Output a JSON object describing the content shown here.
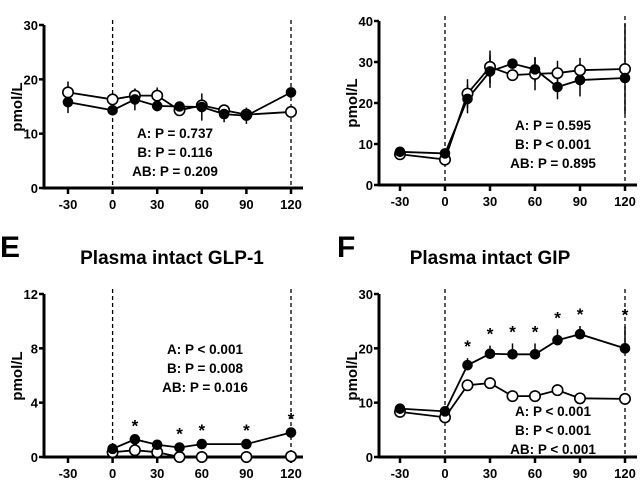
{
  "chart_data": [
    {
      "id": "top-left",
      "type": "line",
      "panel_letter": "",
      "title": "",
      "xlabel": "",
      "ylabel": "pmol/L",
      "ylim": [
        0,
        30
      ],
      "xlim": [
        -30,
        120
      ],
      "yticks": [
        0,
        10,
        20,
        30
      ],
      "xticks": [
        -30,
        0,
        30,
        60,
        90,
        120
      ],
      "ytick_labels": [
        "0",
        "10",
        "20",
        "30"
      ],
      "xtick_labels": [
        "-30",
        "0",
        "30",
        "60",
        "90",
        "120"
      ],
      "vlines": [
        0,
        120
      ],
      "stats": [
        "A: P = 0.737",
        "B: P = 0.116",
        "AB: P = 0.209"
      ],
      "stats_position": "bottom-center",
      "series": [
        {
          "name": "open",
          "marker": "open-circle",
          "x": [
            -30,
            0,
            15,
            30,
            45,
            60,
            75,
            90,
            120
          ],
          "values": [
            17.6,
            16.3,
            17.0,
            17.0,
            14.3,
            15.2,
            14.3,
            13.5,
            14.0
          ],
          "err": [
            2.0,
            0,
            1.3,
            1.5,
            0.8,
            0.8,
            1.0,
            0.5,
            0
          ],
          "stars": []
        },
        {
          "name": "filled",
          "marker": "filled-circle",
          "x": [
            -30,
            0,
            15,
            30,
            45,
            60,
            75,
            90,
            120
          ],
          "values": [
            15.8,
            14.3,
            16.3,
            15.1,
            15.0,
            14.9,
            13.6,
            13.3,
            17.6
          ],
          "err": [
            2.0,
            0,
            2.0,
            1.0,
            0.8,
            2.5,
            1.5,
            1.5,
            0
          ],
          "stars": []
        }
      ]
    },
    {
      "id": "top-right",
      "type": "line",
      "panel_letter": "",
      "title": "",
      "xlabel": "",
      "ylabel": "pmol/L",
      "ylim": [
        0,
        40
      ],
      "xlim": [
        -30,
        120
      ],
      "yticks": [
        0,
        10,
        20,
        30,
        40
      ],
      "xticks": [
        -30,
        0,
        30,
        60,
        90,
        120
      ],
      "ytick_labels": [
        "0",
        "10",
        "20",
        "30",
        "40"
      ],
      "xtick_labels": [
        "-30",
        "0",
        "30",
        "60",
        "90",
        "120"
      ],
      "vlines": [
        0,
        120
      ],
      "stats": [
        "A: P = 0.595",
        "B: P < 0.001",
        "AB: P = 0.895"
      ],
      "stats_position": "bottom-right",
      "series": [
        {
          "name": "open",
          "marker": "open-circle",
          "x": [
            -30,
            0,
            15,
            30,
            45,
            60,
            75,
            90,
            120
          ],
          "values": [
            7.5,
            6.2,
            22.3,
            28.8,
            26.8,
            27.1,
            27.3,
            28.0,
            28.3
          ],
          "err": [
            0.5,
            0,
            3.5,
            4.0,
            1.0,
            4.0,
            3.0,
            3.0,
            11.0
          ],
          "stars": []
        },
        {
          "name": "filled",
          "marker": "filled-circle",
          "x": [
            -30,
            0,
            15,
            30,
            45,
            60,
            75,
            90,
            120
          ],
          "values": [
            8.1,
            7.7,
            21.0,
            27.7,
            29.6,
            28.2,
            23.9,
            25.6,
            26.1
          ],
          "err": [
            1.0,
            0,
            3.5,
            4.0,
            0.5,
            3.0,
            3.0,
            4.0,
            0
          ],
          "stars": []
        }
      ]
    },
    {
      "id": "E",
      "type": "line",
      "panel_letter": "E",
      "title": "Plasma intact GLP-1",
      "xlabel": "",
      "ylabel": "pmol/L",
      "ylim": [
        0,
        12
      ],
      "xlim": [
        -30,
        120
      ],
      "yticks": [
        0,
        4,
        8,
        12
      ],
      "xticks": [
        -30,
        0,
        30,
        60,
        90,
        120
      ],
      "ytick_labels": [
        "0",
        "4",
        "8",
        "12"
      ],
      "xtick_labels": [
        "-30",
        "0",
        "30",
        "60",
        "90",
        "120"
      ],
      "vlines": [
        0,
        120
      ],
      "stats": [
        "A: P < 0.001",
        "B: P = 0.008",
        "AB: P = 0.016"
      ],
      "stats_position": "center",
      "series": [
        {
          "name": "open",
          "marker": "open-circle",
          "x": [
            0,
            15,
            30,
            45,
            60,
            90,
            120
          ],
          "values": [
            0.35,
            0.5,
            0.35,
            0.0,
            0.0,
            0.0,
            0.05
          ],
          "err": [
            0,
            0,
            0,
            0,
            0,
            0,
            0
          ],
          "stars": []
        },
        {
          "name": "filled",
          "marker": "filled-circle",
          "x": [
            0,
            15,
            30,
            45,
            60,
            90,
            120
          ],
          "values": [
            0.6,
            1.3,
            0.9,
            0.7,
            0.95,
            0.95,
            1.8
          ],
          "err": [
            0,
            0,
            0,
            0,
            0,
            0,
            0
          ],
          "stars": [
            15,
            45,
            60,
            90,
            120
          ]
        }
      ]
    },
    {
      "id": "F",
      "type": "line",
      "panel_letter": "F",
      "title": "Plasma intact GIP",
      "xlabel": "",
      "ylabel": "pmol/L",
      "ylim": [
        0,
        30
      ],
      "xlim": [
        -30,
        120
      ],
      "yticks": [
        0,
        10,
        20,
        30
      ],
      "xticks": [
        -30,
        0,
        30,
        60,
        90,
        120
      ],
      "ytick_labels": [
        "0",
        "10",
        "20",
        "30"
      ],
      "xtick_labels": [
        "-30",
        "0",
        "30",
        "60",
        "90",
        "120"
      ],
      "vlines": [
        0,
        120
      ],
      "stats": [
        "A: P < 0.001",
        "B: P < 0.001",
        "AB: P < 0.001"
      ],
      "stats_position": "bottom-center",
      "series": [
        {
          "name": "open",
          "marker": "open-circle",
          "x": [
            -30,
            0,
            15,
            30,
            45,
            60,
            75,
            90,
            120
          ],
          "values": [
            8.3,
            7.3,
            13.2,
            13.6,
            11.2,
            11.2,
            12.3,
            10.8,
            10.7
          ],
          "err": [
            0,
            0,
            0,
            0,
            0,
            0,
            0,
            0,
            0
          ],
          "stars": []
        },
        {
          "name": "filled",
          "marker": "filled-circle",
          "x": [
            -30,
            0,
            15,
            30,
            45,
            60,
            75,
            90,
            120
          ],
          "values": [
            8.9,
            8.4,
            16.9,
            19.0,
            18.9,
            18.9,
            21.5,
            22.6,
            20.0
          ],
          "err": [
            0,
            0,
            1.3,
            1.5,
            2.0,
            2.0,
            2.0,
            1.5,
            4.0
          ],
          "stars": [
            15,
            30,
            45,
            60,
            75,
            90,
            120
          ]
        }
      ]
    }
  ]
}
